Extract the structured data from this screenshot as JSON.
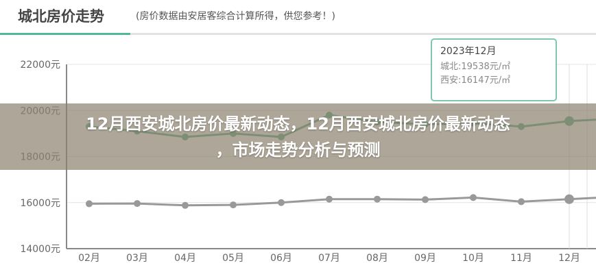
{
  "header": {
    "title": "城北房价走势",
    "subtitle": "(房价数据由安居客综合计算所得，供您参考！)"
  },
  "chart_data": {
    "type": "line",
    "categories": [
      "02月",
      "03月",
      "04月",
      "05月",
      "06月",
      "07月",
      "08月",
      "09月",
      "10月",
      "11月",
      "12月"
    ],
    "y_ticks": [
      "14000元",
      "16000元",
      "18000元",
      "20000元",
      "22000元"
    ],
    "ylim": [
      14000,
      22000
    ],
    "grid": true,
    "series": [
      {
        "name": "城北",
        "color": "#5aaa88",
        "values": [
          19300,
          19100,
          18850,
          19000,
          18850,
          19800,
          19500,
          19400,
          19450,
          19300,
          19538
        ]
      },
      {
        "name": "西安",
        "color": "#999999",
        "values": [
          15950,
          15960,
          15880,
          15900,
          16000,
          16150,
          16150,
          16130,
          16220,
          16040,
          16147
        ]
      }
    ],
    "tooltip": {
      "title": "2023年12月",
      "rows": [
        "城北:19538元/㎡",
        "西安:16147元/㎡"
      ]
    }
  },
  "banner": {
    "line1": "12月西安城北房价最新动态，12月西安城北房价最新动态",
    "line2": "，市场走势分析与预测"
  }
}
